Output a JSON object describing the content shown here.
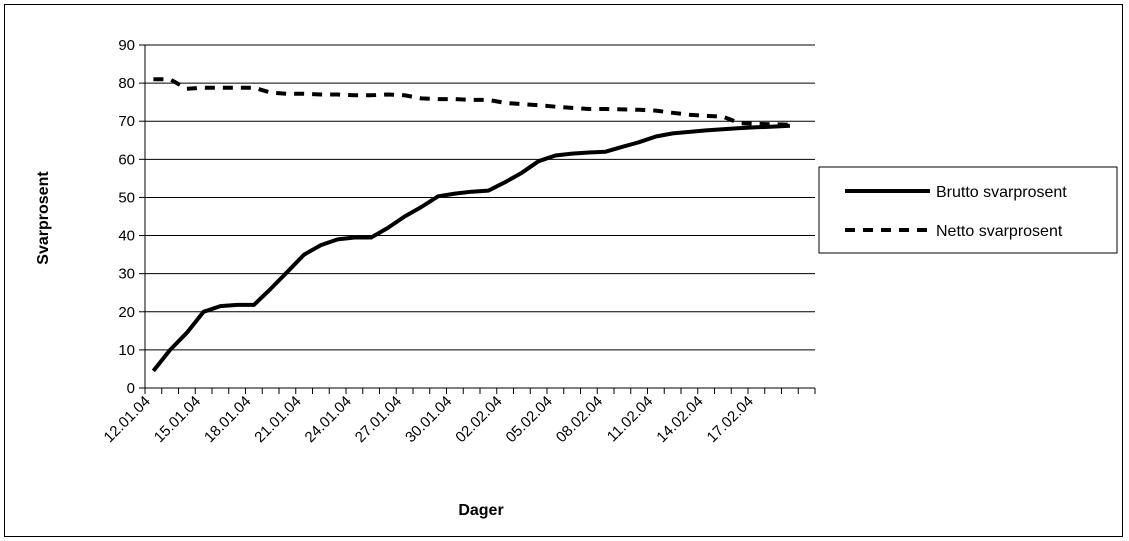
{
  "chart_data": {
    "type": "line",
    "title": "",
    "xlabel": "Dager",
    "ylabel": "Svarprosent",
    "ylim": [
      0,
      90
    ],
    "y_ticks": [
      0,
      10,
      20,
      30,
      40,
      50,
      60,
      70,
      80,
      90
    ],
    "x_tick_labels": [
      "12.01.04",
      "15.01.04",
      "18.01.04",
      "21.01.04",
      "24.01.04",
      "27.01.04",
      "30.01.04",
      "02.02.04",
      "05.02.04",
      "08.02.04",
      "11.02.04",
      "14.02.04",
      "17.02.04"
    ],
    "x_categories": 40,
    "grid": "horizontal",
    "legend_position": "right",
    "series": [
      {
        "name": "Brutto svarprosent",
        "style": "solid",
        "color": "#000000",
        "values": [
          4.5,
          10,
          14.5,
          20,
          21.5,
          21.8,
          21.8,
          26,
          30.5,
          35,
          37.5,
          39,
          39.5,
          39.5,
          42,
          45,
          47.5,
          50.3,
          51,
          51.5,
          51.8,
          54,
          56.5,
          59.5,
          61,
          61.5,
          61.8,
          62,
          63.3,
          64.5,
          66,
          66.8,
          67.2,
          67.6,
          67.9,
          68.2,
          68.4,
          68.6,
          68.8
        ]
      },
      {
        "name": "Netto svarprosent",
        "style": "dashed",
        "color": "#000000",
        "values": [
          81,
          81,
          78.5,
          78.8,
          78.8,
          78.8,
          78.8,
          77.5,
          77.2,
          77.2,
          77,
          77,
          76.8,
          76.8,
          77,
          76.8,
          76,
          75.8,
          75.8,
          75.6,
          75.6,
          74.8,
          74.5,
          74.2,
          73.8,
          73.5,
          73.2,
          73.2,
          73.1,
          73,
          72.8,
          72.2,
          71.7,
          71.4,
          71.2,
          69.5,
          69.3,
          69.2,
          69.1
        ]
      }
    ]
  }
}
